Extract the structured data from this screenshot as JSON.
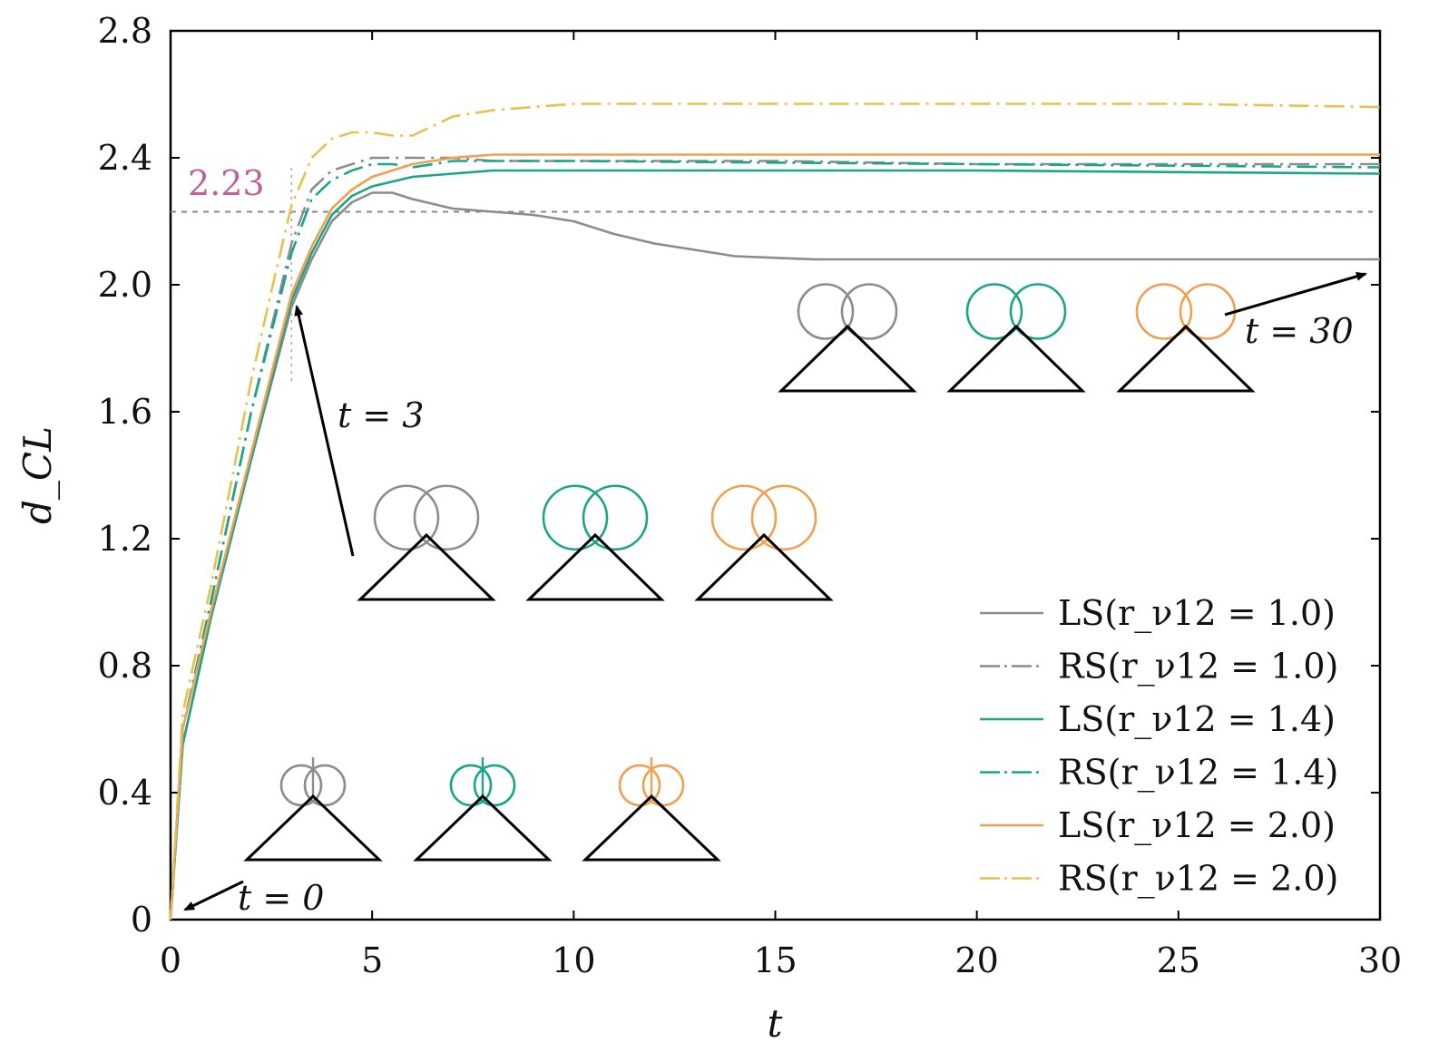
{
  "chart_data": {
    "type": "line",
    "title": "",
    "xlabel": "t",
    "ylabel": "d_CL",
    "xlim": [
      0,
      30
    ],
    "ylim": [
      0,
      2.8
    ],
    "x_ticks": [
      "0",
      "5",
      "10",
      "15",
      "20",
      "25",
      "30"
    ],
    "y_ticks": [
      "0",
      "0.4",
      "0.8",
      "1.2",
      "1.6",
      "2.0",
      "2.4",
      "2.8"
    ],
    "grid": false,
    "legend_position": "bottom-right",
    "reference_line": {
      "y": 2.23,
      "label": "2.23",
      "color": "#c0609a"
    },
    "annotations": [
      {
        "text": "t = 0"
      },
      {
        "text": "t = 3"
      },
      {
        "text": "t = 30"
      }
    ],
    "series": [
      {
        "name": "LS(r_ν12 = 1.0)",
        "style": "solid",
        "color": "#8c8c8c",
        "x": [
          0,
          0.3,
          1,
          2,
          3,
          3.5,
          4,
          4.5,
          5,
          5.5,
          6,
          7,
          8,
          9,
          10,
          11,
          12,
          13,
          14,
          15,
          16,
          18,
          20,
          25,
          30
        ],
        "y": [
          0,
          0.55,
          0.95,
          1.45,
          1.93,
          2.08,
          2.2,
          2.26,
          2.29,
          2.29,
          2.27,
          2.24,
          2.23,
          2.22,
          2.2,
          2.16,
          2.13,
          2.11,
          2.09,
          2.085,
          2.08,
          2.08,
          2.08,
          2.08,
          2.08
        ]
      },
      {
        "name": "RS(r_ν12 = 1.0)",
        "style": "dashdot",
        "color": "#8c8c8c",
        "x": [
          0,
          0.3,
          1,
          2,
          3,
          3.5,
          4,
          4.5,
          5,
          6,
          7,
          8,
          10,
          15,
          20,
          25,
          30
        ],
        "y": [
          0,
          0.6,
          1.0,
          1.6,
          2.13,
          2.3,
          2.36,
          2.38,
          2.4,
          2.4,
          2.4,
          2.39,
          2.39,
          2.39,
          2.38,
          2.38,
          2.38
        ]
      },
      {
        "name": "LS(r_ν12 = 1.4)",
        "style": "solid",
        "color": "#1aa58a",
        "x": [
          0,
          0.3,
          1,
          2,
          3,
          3.5,
          4,
          4.5,
          5,
          6,
          7,
          8,
          10,
          15,
          20,
          25,
          30
        ],
        "y": [
          0,
          0.55,
          0.95,
          1.45,
          1.95,
          2.1,
          2.22,
          2.28,
          2.31,
          2.34,
          2.35,
          2.36,
          2.36,
          2.36,
          2.36,
          2.355,
          2.35
        ]
      },
      {
        "name": "RS(r_ν12 = 1.4)",
        "style": "dashdot",
        "color": "#1aa58a",
        "x": [
          0,
          0.3,
          1,
          2,
          3,
          3.5,
          4,
          4.5,
          5,
          5.5,
          6,
          6.5,
          7,
          8,
          10,
          15,
          20,
          25,
          30
        ],
        "y": [
          0,
          0.6,
          1.0,
          1.6,
          2.1,
          2.27,
          2.33,
          2.36,
          2.38,
          2.38,
          2.37,
          2.38,
          2.39,
          2.39,
          2.39,
          2.385,
          2.38,
          2.375,
          2.37
        ]
      },
      {
        "name": "LS(r_ν12 = 2.0)",
        "style": "solid",
        "color": "#f0a050",
        "x": [
          0,
          0.3,
          1,
          2,
          3,
          3.5,
          4,
          4.5,
          5,
          6,
          7,
          8,
          10,
          15,
          20,
          25,
          30
        ],
        "y": [
          0,
          0.6,
          0.97,
          1.47,
          1.97,
          2.12,
          2.24,
          2.3,
          2.34,
          2.38,
          2.4,
          2.41,
          2.41,
          2.41,
          2.41,
          2.41,
          2.41
        ]
      },
      {
        "name": "RS(r_ν12 = 2.0)",
        "style": "dashdot",
        "color": "#e8c050",
        "x": [
          0,
          0.3,
          1,
          2,
          2.5,
          3,
          3.5,
          4,
          4.5,
          5,
          5.5,
          6,
          6.5,
          7,
          8,
          9,
          10,
          15,
          20,
          25,
          30
        ],
        "y": [
          0,
          0.65,
          1.05,
          1.7,
          1.98,
          2.25,
          2.4,
          2.46,
          2.48,
          2.48,
          2.47,
          2.47,
          2.5,
          2.53,
          2.55,
          2.56,
          2.57,
          2.57,
          2.57,
          2.57,
          2.56
        ]
      }
    ]
  }
}
